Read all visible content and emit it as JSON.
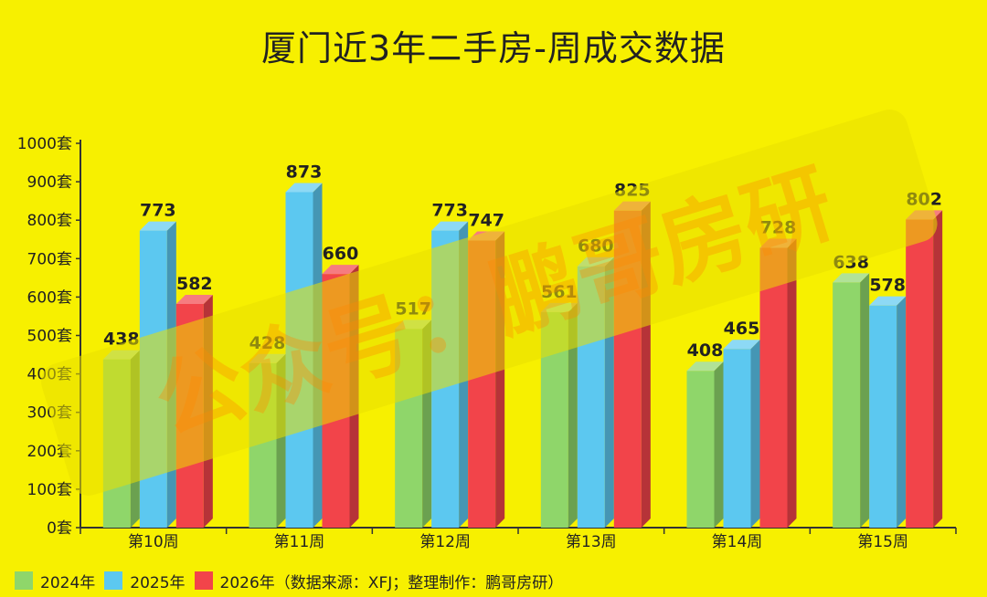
{
  "chart_data": {
    "type": "bar",
    "title": "厦门近3年二手房-周成交数据",
    "categories": [
      "第10周",
      "第11周",
      "第12周",
      "第13周",
      "第14周",
      "第15周"
    ],
    "series": [
      {
        "name": "2024年",
        "values": [
          438,
          428,
          517,
          561,
          408,
          638
        ],
        "color": "#8fd66a"
      },
      {
        "name": "2025年",
        "values": [
          773,
          873,
          773,
          680,
          465,
          578
        ],
        "color": "#5cc8f0"
      },
      {
        "name": "2026年",
        "values": [
          582,
          660,
          747,
          825,
          728,
          802
        ],
        "color": "#f2444a"
      }
    ],
    "ylim": [
      0,
      1000
    ],
    "yticks": [
      "0套",
      "100套",
      "200套",
      "300套",
      "400套",
      "500套",
      "600套",
      "700套",
      "800套",
      "900套",
      "1000套"
    ],
    "grid": false,
    "legend_position": "bottom-left",
    "source_note": "（数据来源：XFJ；整理制作：鹏哥房研）",
    "watermark": "公众号：鹏哥房研"
  }
}
